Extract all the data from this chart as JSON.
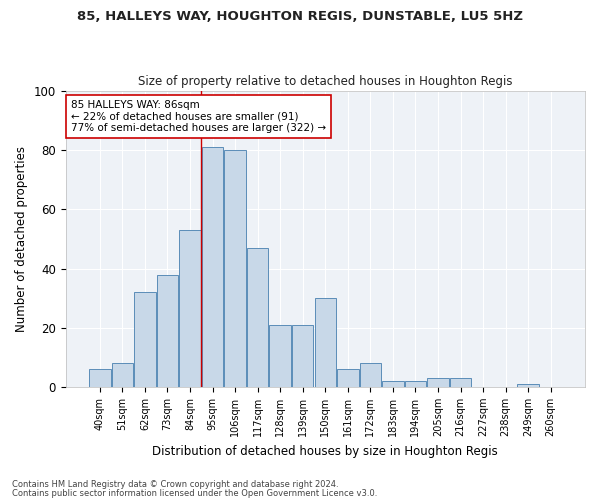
{
  "title1": "85, HALLEYS WAY, HOUGHTON REGIS, DUNSTABLE, LU5 5HZ",
  "title2": "Size of property relative to detached houses in Houghton Regis",
  "xlabel": "Distribution of detached houses by size in Houghton Regis",
  "ylabel": "Number of detached properties",
  "categories": [
    "40sqm",
    "51sqm",
    "62sqm",
    "73sqm",
    "84sqm",
    "95sqm",
    "106sqm",
    "117sqm",
    "128sqm",
    "139sqm",
    "150sqm",
    "161sqm",
    "172sqm",
    "183sqm",
    "194sqm",
    "205sqm",
    "216sqm",
    "227sqm",
    "238sqm",
    "249sqm",
    "260sqm"
  ],
  "values": [
    6,
    8,
    32,
    38,
    53,
    81,
    80,
    47,
    21,
    21,
    30,
    6,
    8,
    2,
    2,
    3,
    3,
    0,
    0,
    1,
    0
  ],
  "bar_color": "#c8d8e8",
  "bar_edge_color": "#5b8db8",
  "annotation_line1": "85 HALLEYS WAY: 86sqm",
  "annotation_line2": "← 22% of detached houses are smaller (91)",
  "annotation_line3": "77% of semi-detached houses are larger (322) →",
  "vline_color": "#cc0000",
  "vline_x_index": 4.5,
  "footnote1": "Contains HM Land Registry data © Crown copyright and database right 2024.",
  "footnote2": "Contains public sector information licensed under the Open Government Licence v3.0.",
  "ylim": [
    0,
    100
  ],
  "bg_color": "#eef2f7"
}
